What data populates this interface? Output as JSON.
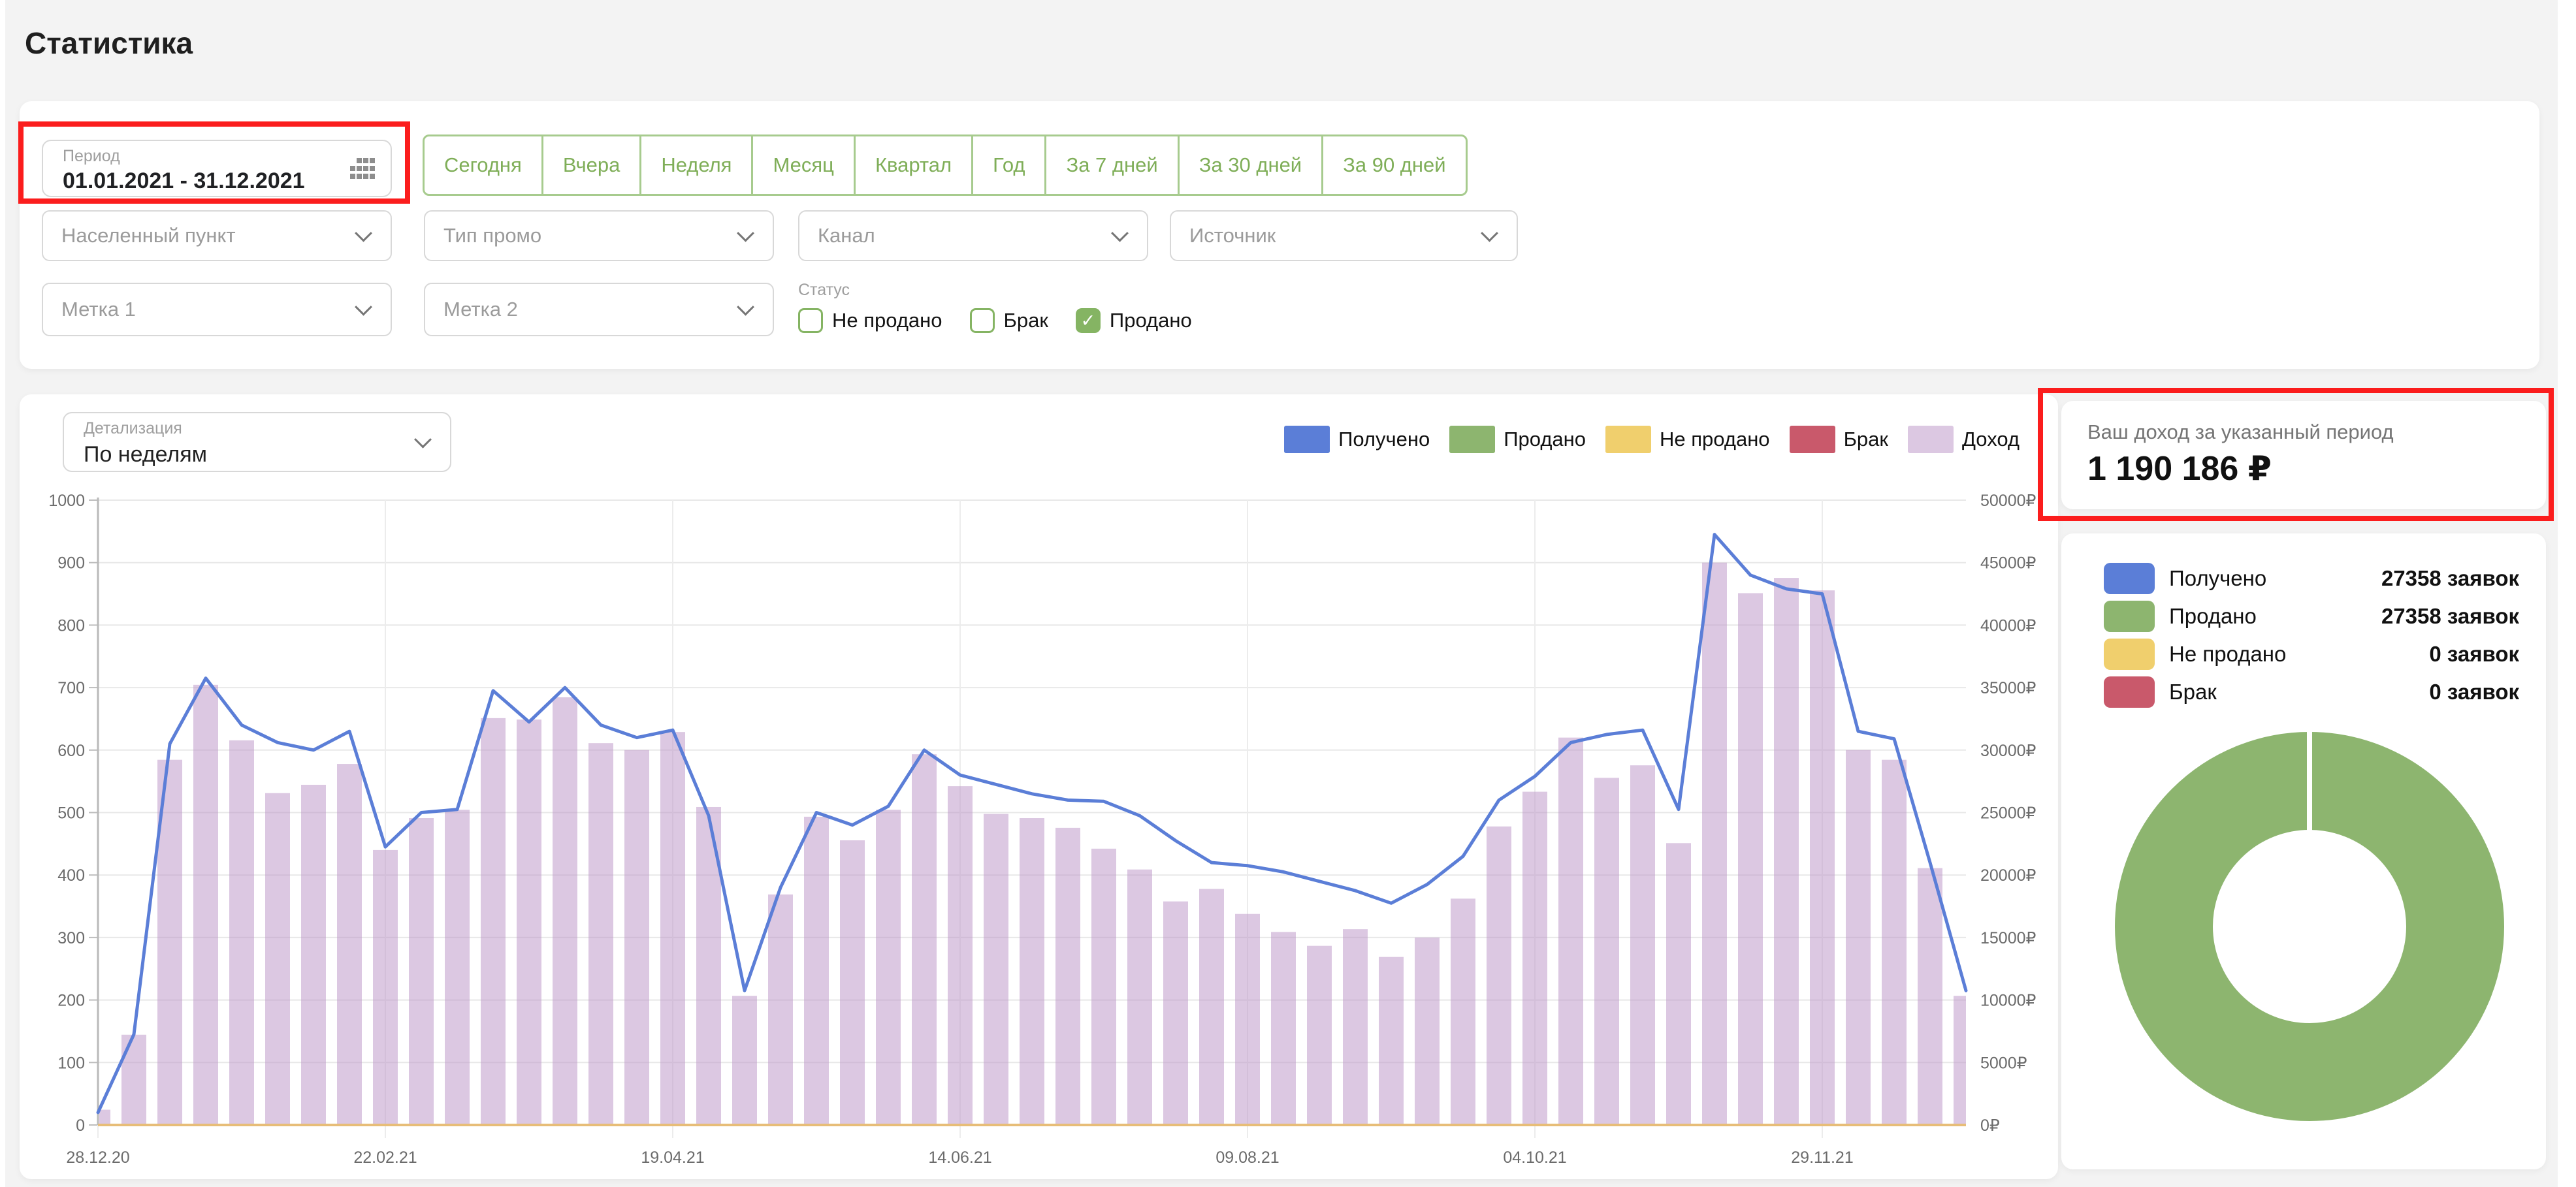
{
  "page": {
    "title": "Статистика",
    "background": "#f3f3f3"
  },
  "filters": {
    "period": {
      "label": "Период",
      "value": "01.01.2021 - 31.12.2021",
      "icon": "calendar-grid-icon"
    },
    "quick_ranges": [
      "Сегодня",
      "Вчера",
      "Неделя",
      "Месяц",
      "Квартал",
      "Год",
      "За 7 дней",
      "За 30 дней",
      "За 90 дней"
    ],
    "selects_row1": [
      "Населенный пункт",
      "Тип промо",
      "Канал",
      "Источник"
    ],
    "selects_row2": [
      "Метка 1",
      "Метка 2"
    ],
    "status": {
      "label": "Статус",
      "options": [
        {
          "label": "Не продано",
          "checked": false
        },
        {
          "label": "Брак",
          "checked": false
        },
        {
          "label": "Продано",
          "checked": true
        }
      ]
    }
  },
  "detail": {
    "label": "Детализация",
    "value": "По неделям"
  },
  "legend": [
    {
      "label": "Получено",
      "color": "#5b7ed7"
    },
    {
      "label": "Продано",
      "color": "#8db56f"
    },
    {
      "label": "Не продано",
      "color": "#f0cf6d"
    },
    {
      "label": "Брак",
      "color": "#c9596b"
    },
    {
      "label": "Доход",
      "color": "#dcc8e2"
    }
  ],
  "income_card": {
    "label": "Ваш доход за указанный период",
    "value": "1 190 186 ₽"
  },
  "summary": [
    {
      "label": "Получено",
      "color": "#5b7ed7",
      "value": "27358 заявок"
    },
    {
      "label": "Продано",
      "color": "#8db56f",
      "value": "27358 заявок"
    },
    {
      "label": "Не продано",
      "color": "#f0cf6d",
      "value": "0 заявок"
    },
    {
      "label": "Брак",
      "color": "#c9596b",
      "value": "0 заявок"
    }
  ],
  "donut": {
    "type": "pie",
    "segments": [
      {
        "label": "Продано",
        "color": "#8db56f",
        "fraction": 1.0
      }
    ]
  },
  "chart_data": {
    "type": "combo",
    "title": "",
    "x_tick_labels": [
      "28.12.20",
      "22.02.21",
      "19.04.21",
      "14.06.21",
      "09.08.21",
      "04.10.21",
      "29.11.21"
    ],
    "x_tick_indices": [
      0,
      8,
      16,
      24,
      32,
      40,
      48
    ],
    "points_total": 53,
    "left_axis": {
      "min": 0,
      "max": 1000,
      "step": 100
    },
    "right_axis": {
      "min": 0,
      "max": 45000,
      "step": 5000,
      "suffix": "₽"
    },
    "grid": true,
    "legend_position": "top-right",
    "series": [
      {
        "name": "Получено",
        "type": "line",
        "axis": "left",
        "color": "#5b7ed7",
        "values": [
          20,
          145,
          610,
          715,
          640,
          612,
          600,
          630,
          445,
          500,
          505,
          695,
          645,
          700,
          640,
          620,
          632,
          495,
          215,
          380,
          500,
          480,
          510,
          600,
          560,
          545,
          530,
          520,
          518,
          495,
          455,
          420,
          415,
          405,
          390,
          375,
          355,
          385,
          430,
          520,
          558,
          612,
          625,
          632,
          505,
          945,
          880,
          858,
          850,
          630,
          618,
          420,
          215
        ]
      },
      {
        "name": "Доход",
        "type": "bar",
        "axis": "right",
        "color": "#dcc8e2",
        "values": [
          1100,
          6500,
          26300,
          31700,
          27700,
          23900,
          24500,
          26000,
          19800,
          22100,
          22700,
          29300,
          29200,
          30800,
          27500,
          27000,
          28300,
          22900,
          9300,
          16600,
          22200,
          20500,
          22700,
          26700,
          24400,
          22400,
          22100,
          21400,
          19900,
          18400,
          16100,
          17000,
          15200,
          13900,
          12900,
          14100,
          12100,
          13500,
          16300,
          21500,
          24000,
          27900,
          25000,
          25900,
          20300,
          40500,
          38300,
          39400,
          38500,
          27000,
          26300,
          18500,
          9300
        ]
      },
      {
        "name": "Не продано",
        "type": "bar",
        "axis": "left",
        "color": "#e7bd78",
        "constant_value": 0
      },
      {
        "name": "Брак",
        "type": "bar",
        "axis": "left",
        "color": "#c9596b",
        "constant_value": 0
      }
    ]
  }
}
